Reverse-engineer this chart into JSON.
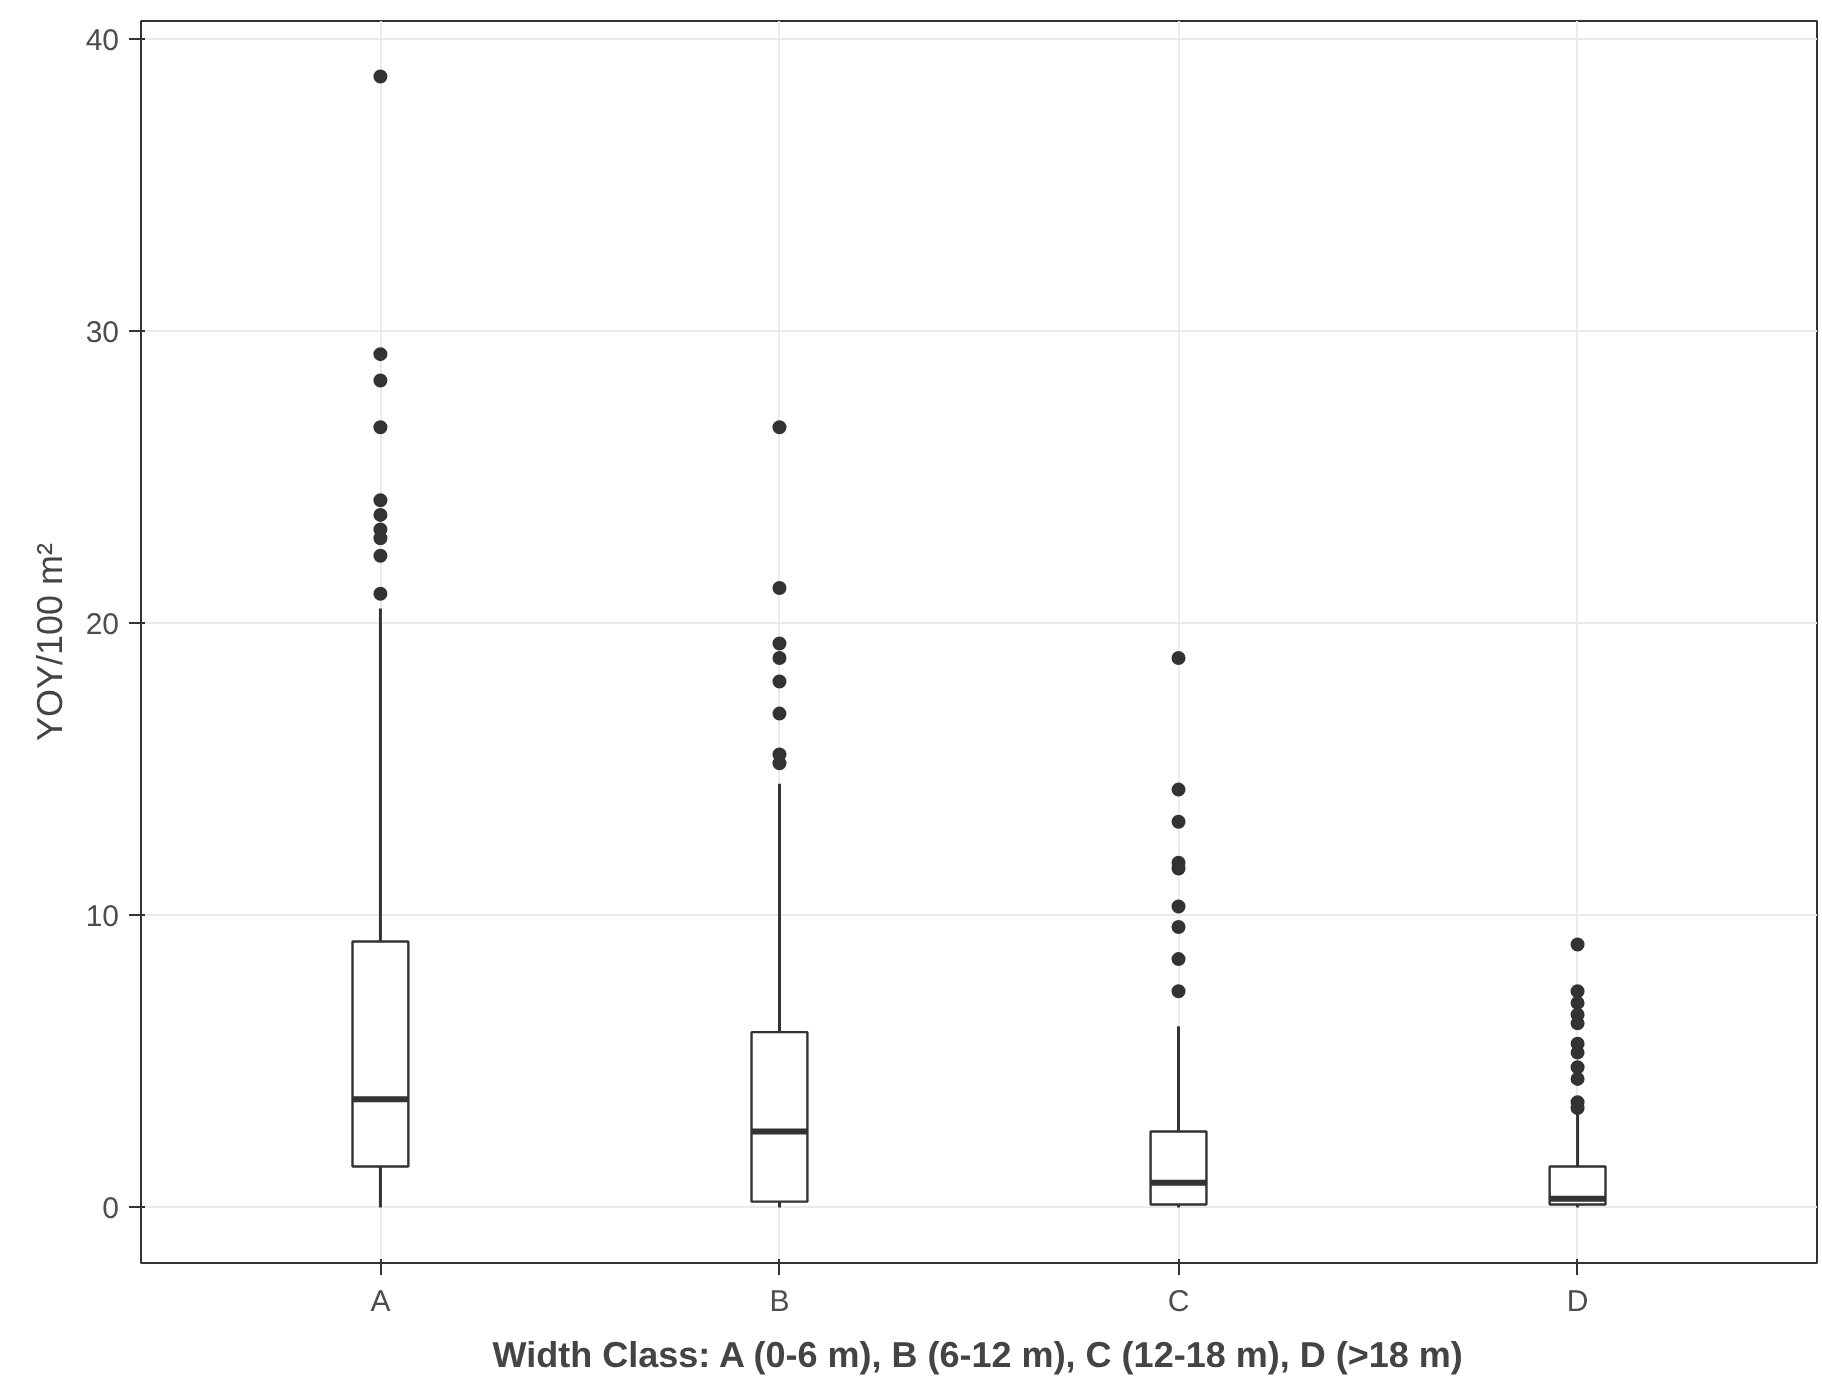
{
  "chart_data": {
    "type": "box",
    "xlabel": "Width Class: A (0-6 m), B (6-12 m), C (12-18 m), D (>18 m)",
    "ylabel": "YOY/100 m²",
    "categories": [
      "A",
      "B",
      "C",
      "D"
    ],
    "boxes": [
      {
        "low": 0,
        "q1": 1.4,
        "median": 3.7,
        "q3": 9.1,
        "high": 20.5,
        "outliers": [
          38.7,
          29.2,
          28.3,
          26.7,
          24.2,
          23.7,
          23.2,
          22.9,
          22.3,
          21.0
        ]
      },
      {
        "low": 0,
        "q1": 0.2,
        "median": 2.6,
        "q3": 6.0,
        "high": 14.5,
        "outliers": [
          26.7,
          21.2,
          19.3,
          18.8,
          18.0,
          16.9,
          15.5,
          15.2
        ]
      },
      {
        "low": 0,
        "q1": 0.1,
        "median": 0.85,
        "q3": 2.6,
        "high": 6.2,
        "outliers": [
          18.8,
          14.3,
          13.2,
          11.8,
          11.6,
          10.3,
          9.6,
          8.5,
          7.4
        ]
      },
      {
        "low": 0,
        "q1": 0.1,
        "median": 0.3,
        "q3": 1.4,
        "high": 3.2,
        "outliers": [
          9.0,
          7.4,
          7.0,
          6.6,
          6.3,
          5.6,
          5.3,
          4.8,
          4.4,
          3.6,
          3.4
        ]
      }
    ],
    "color": "#ffffff",
    "ylim": [
      -1.9,
      40.6
    ],
    "yticks": [
      0,
      10,
      20,
      30,
      40
    ],
    "grid": true
  }
}
